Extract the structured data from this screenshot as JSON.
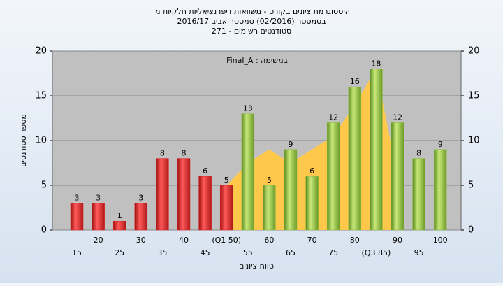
{
  "chart_data": {
    "type": "bar",
    "title": "היסטוגרמת ציונים בקורס - משוואות דיפרנציאליות חלקיות מ'",
    "subtitle": "בסמסטר (02/2016) סמסטר אביב 2016/17",
    "subtitle2": "סטודנטים רשומים - 271",
    "annotation": "במשימה : Final_A",
    "x_label": "טווח ציונים",
    "y_label": "מספר סטודנטים",
    "categories": [
      "15",
      "20",
      "25",
      "30",
      "35",
      "40",
      "45",
      "(Q1 50)",
      "55",
      "60",
      "65",
      "70",
      "75",
      "80",
      "(Q3 85)",
      "90",
      "95",
      "100"
    ],
    "values": [
      3,
      3,
      1,
      3,
      8,
      8,
      6,
      5,
      13,
      5,
      9,
      6,
      12,
      16,
      18,
      12,
      8,
      9
    ],
    "colors": [
      "#e02020",
      "#e02020",
      "#e02020",
      "#e02020",
      "#e02020",
      "#e02020",
      "#e02020",
      "#e02020",
      "#8cbf3a",
      "#8cbf3a",
      "#8cbf3a",
      "#8cbf3a",
      "#8cbf3a",
      "#8cbf3a",
      "#8cbf3a",
      "#8cbf3a",
      "#8cbf3a",
      "#8cbf3a"
    ],
    "area": {
      "color": "#ffc84a",
      "values": [
        null,
        null,
        null,
        null,
        null,
        null,
        null,
        5,
        7.5,
        9,
        7.5,
        9,
        10.5,
        14,
        18,
        6,
        null,
        null
      ]
    },
    "ylim": [
      0,
      20
    ],
    "yticks": [
      0,
      5,
      10,
      15,
      20
    ],
    "y2lim": [
      0,
      20
    ],
    "y2ticks": [
      0,
      5,
      10,
      15,
      20
    ],
    "grid": true
  }
}
